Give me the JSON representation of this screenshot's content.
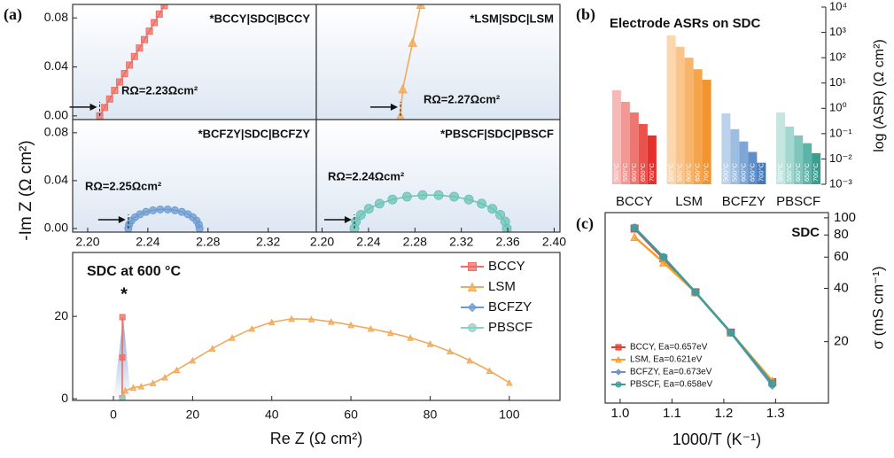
{
  "figure": {
    "panel_labels": [
      "(a)",
      "(b)",
      "(c)"
    ],
    "ylabel": "-Im Z (Ω cm²)"
  },
  "chart_data": [
    {
      "type": "line",
      "annotation": "*BCCY|SDC|BCCY",
      "r_label": "RΩ=2.23Ωcm²",
      "xlim": [
        2.19,
        2.352
      ],
      "ylim": [
        -0.003,
        0.091
      ],
      "yticks": [
        {
          "value": 0,
          "label": "0.00"
        },
        {
          "value": 0.04,
          "label": "0.04"
        },
        {
          "value": 0.08,
          "label": "0.08"
        }
      ],
      "series": [
        {
          "color": "#ee6e63",
          "marker": "square",
          "x": [
            2.208,
            2.2113,
            2.2146,
            2.2179,
            2.2212,
            2.2245,
            2.2278,
            2.2311,
            2.2344,
            2.2377,
            2.241,
            2.2443,
            2.2476,
            2.2509
          ],
          "values": [
            0,
            0.0069,
            0.0138,
            0.0208,
            0.0277,
            0.0346,
            0.0415,
            0.0485,
            0.0554,
            0.0623,
            0.0692,
            0.0762,
            0.0831,
            0.09
          ]
        }
      ]
    },
    {
      "type": "line",
      "annotation": "*LSM|SDC|LSM",
      "r_label": "RΩ=2.27Ωcm²",
      "xlim": [
        2.195,
        2.405
      ],
      "ylim": [
        -0.003,
        0.091
      ],
      "series": [
        {
          "color": "#f2a95a",
          "marker": "triangle",
          "x": [
            2.2675,
            2.2695,
            2.278,
            2.285
          ],
          "values": [
            0,
            0.022,
            0.06,
            0.091
          ]
        }
      ]
    },
    {
      "type": "line",
      "annotation": "*BCFZY|SDC|BCFZY",
      "r_label": "RΩ=2.25Ωcm²",
      "xlim": [
        2.19,
        2.352
      ],
      "ylim": [
        -0.003,
        0.091
      ],
      "xticks": [
        {
          "value": 2.2,
          "label": "2.20"
        },
        2.24,
        2.28,
        2.32
      ],
      "yticks": [
        {
          "value": 0,
          "label": "0.00"
        },
        {
          "value": 0.04,
          "label": "0.04"
        },
        {
          "value": 0.08,
          "label": "0.08"
        }
      ],
      "series": [
        {
          "color": "#6d9bd1",
          "marker": "circle",
          "x": [
            2.227,
            2.2275,
            2.229,
            2.2315,
            2.2348,
            2.2388,
            2.2434,
            2.2482,
            2.2532,
            2.258,
            2.2626,
            2.2666,
            2.2699,
            2.2724,
            2.2739,
            2.2744
          ],
          "values": [
            0,
            0.0033,
            0.0065,
            0.0094,
            0.0119,
            0.0139,
            0.0152,
            0.0159,
            0.0159,
            0.0152,
            0.0139,
            0.0119,
            0.0094,
            0.0065,
            0.0033,
            0
          ]
        }
      ]
    },
    {
      "type": "line",
      "annotation": "*PBSCF|SDC|PBSCF",
      "r_label": "RΩ=2.24Ωcm²",
      "xlim": [
        2.195,
        2.405
      ],
      "ylim": [
        -0.003,
        0.091
      ],
      "xticks": [
        {
          "value": 2.2,
          "label": "2.20"
        },
        2.24,
        2.28,
        2.32,
        2.36,
        {
          "value": 2.4,
          "label": "2.40"
        }
      ],
      "series": [
        {
          "color": "#6cc3b8",
          "marker": "circle",
          "x": [
            2.2278,
            2.2292,
            2.2335,
            2.2403,
            2.2495,
            2.2606,
            2.2732,
            2.2866,
            2.3004,
            2.3138,
            2.3264,
            2.3375,
            2.3467,
            2.3535,
            2.3578,
            2.3592
          ],
          "values": [
            0,
            0.0058,
            0.0114,
            0.0165,
            0.0208,
            0.0242,
            0.0266,
            0.0279,
            0.0279,
            0.0266,
            0.0242,
            0.0208,
            0.0165,
            0.0114,
            0.0058,
            0
          ]
        }
      ]
    },
    {
      "type": "line",
      "title": "SDC at 600 °C",
      "annotation": "*",
      "xlabel": "Re Z (Ω cm²)",
      "xlim": [
        -10.3,
        112.8
      ],
      "ylim": [
        -0.4,
        35.5
      ],
      "xticks": [
        0,
        20,
        40,
        60,
        80,
        100
      ],
      "yticks": [
        0,
        20
      ],
      "legend": "upper right",
      "series": [
        {
          "name": "BCCY",
          "color": "#ee6e63",
          "marker": "square",
          "x": [
            2.21,
            2.24,
            2.27
          ],
          "values": [
            0.1,
            10,
            19.8
          ]
        },
        {
          "name": "LSM",
          "color": "#f2a95a",
          "marker": "triangle",
          "x": [
            2.3,
            3,
            5,
            7,
            10,
            13,
            16,
            20,
            25,
            30,
            35,
            40,
            45,
            50,
            55,
            60,
            65,
            70,
            75,
            80,
            85,
            90,
            95,
            100
          ],
          "values": [
            0.5,
            2.0,
            2.7,
            3.0,
            3.8,
            5.2,
            7.0,
            9.3,
            12.2,
            14.8,
            17.0,
            18.6,
            19.4,
            19.3,
            18.7,
            17.9,
            17.0,
            16.0,
            14.8,
            13.3,
            11.5,
            9.3,
            6.8,
            3.9
          ]
        },
        {
          "name": "BCFZY",
          "color": "#6d9bd1",
          "marker": "diamond",
          "x": [
            2.23,
            2.25,
            2.27
          ],
          "values": [
            0,
            0.016,
            0
          ]
        },
        {
          "name": "PBSCF",
          "color": "#8fd0c6",
          "marker": "circle",
          "x": [
            2.23,
            2.29,
            2.36
          ],
          "values": [
            0,
            0.028,
            0
          ]
        }
      ]
    },
    {
      "type": "bar",
      "title": "Electrode ASRs on SDC",
      "ylabel": "log (ASR) (Ω cm²)",
      "log_y": true,
      "categories": [
        "BCCY",
        "LSM",
        "BCFZY",
        "PBSCF"
      ],
      "ylim": [
        0.001,
        10000
      ],
      "yticks": [
        {
          "value": 10000,
          "label": "10⁴"
        },
        {
          "value": 1000,
          "label": "10³"
        },
        {
          "value": 100,
          "label": "10²"
        },
        {
          "value": 10,
          "label": "10¹"
        },
        {
          "value": 1,
          "label": "10⁰"
        },
        {
          "value": 0.1,
          "label": "10⁻¹"
        },
        {
          "value": 0.01,
          "label": "10⁻²"
        },
        {
          "value": 0.001,
          "label": "10⁻³"
        }
      ],
      "series": [
        {
          "name": "500°C",
          "color": [
            "#f6b9b6",
            "#fcd6ad",
            "#bcd2ea",
            "#c4e6e1"
          ],
          "values": [
            5.2,
            760,
            0.63,
            0.69
          ]
        },
        {
          "name": "550°C",
          "color": [
            "#f39893",
            "#fac48a",
            "#9dbde1",
            "#a3d8d1"
          ],
          "values": [
            1.8,
            270,
            0.15,
            0.19
          ]
        },
        {
          "name": "600°C",
          "color": [
            "#ef7570",
            "#f8b46a",
            "#7ea7d6",
            "#7fc6bd"
          ],
          "values": [
            0.69,
            100,
            0.049,
            0.085
          ]
        },
        {
          "name": "650°C",
          "color": [
            "#eb524d",
            "#f6a44c",
            "#5f90ca",
            "#5cb3a8"
          ],
          "values": [
            0.24,
            35,
            0.019,
            0.042
          ]
        },
        {
          "name": "700°C",
          "color": [
            "#e6302c",
            "#f3942e",
            "#4279bd",
            "#3a9f93"
          ],
          "values": [
            0.085,
            13.5,
            0.0071,
            0.017
          ]
        }
      ]
    },
    {
      "type": "line",
      "title": "SDC",
      "xlabel": "1000/T (K⁻¹)",
      "ylabel": "σ (mS cm⁻¹)",
      "log_y": true,
      "x": [
        1.0277,
        1.0834,
        1.1453,
        1.2136,
        1.2937
      ],
      "xlim": [
        0.971,
        1.402
      ],
      "xticks": [
        {
          "value": 1,
          "label": "1.0"
        },
        1.1,
        1.2,
        1.3
      ],
      "ylim": [
        9,
        107
      ],
      "yticks": [
        20,
        40,
        60,
        80,
        100
      ],
      "legend": "lower left",
      "series": [
        {
          "name": "BCCY, Ea=0.657eV",
          "color": "#e23b32",
          "marker": "square",
          "values": [
            87,
            59,
            38,
            22.5,
            11.8
          ]
        },
        {
          "name": "LSM, Ea=0.621eV",
          "color": "#f3a030",
          "marker": "triangle",
          "values": [
            78,
            56,
            38,
            22.5,
            12.0
          ]
        },
        {
          "name": "BCFZY, Ea=0.673eV",
          "color": "#6f8fc4",
          "marker": "diamond",
          "values": [
            88,
            60,
            38,
            22.5,
            11.3
          ]
        },
        {
          "name": "PBSCF, Ea=0.658eV",
          "color": "#3f9c98",
          "marker": "circle",
          "values": [
            88,
            60,
            38,
            22.5,
            11.6
          ]
        }
      ]
    }
  ]
}
